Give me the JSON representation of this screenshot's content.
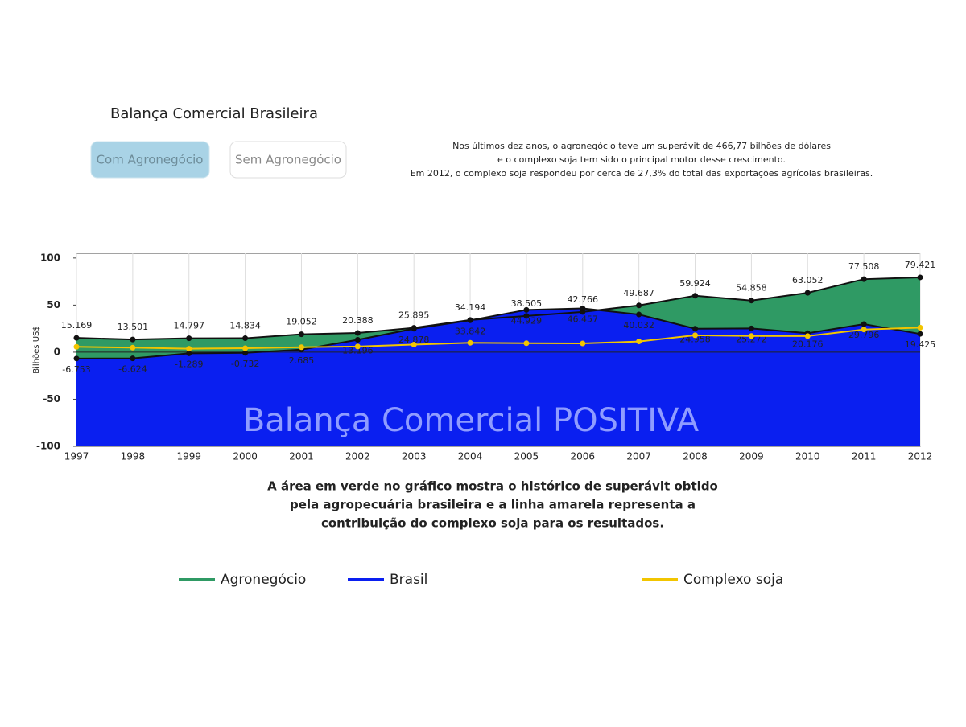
{
  "chart_data": {
    "type": "area",
    "title": "Balança Comercial Brasileira",
    "buttons": [
      "Com Agronegócio",
      "Sem Agronegócio"
    ],
    "description": [
      "Nos últimos dez anos, o agronegócio teve um superávit de 466,77 bilhões de dólares",
      "e o complexo soja tem sido o principal motor desse crescimento.",
      "Em 2012, o complexo soja respondeu por cerca de 27,3% do total das exportações agrícolas brasileiras."
    ],
    "watermark": "Balança Comercial POSITIVA",
    "ylabel": "Bilhões US$",
    "caption": [
      "A área em verde no gráfico mostra o histórico de superávit obtido",
      "pela agropecuária brasileira e a linha amarela representa a",
      "contribuição do complexo soja para os resultados."
    ],
    "categories": [
      "1997",
      "1998",
      "1999",
      "2000",
      "2001",
      "2002",
      "2003",
      "2004",
      "2005",
      "2006",
      "2007",
      "2008",
      "2009",
      "2010",
      "2011",
      "2012"
    ],
    "ylim": [
      -100,
      105
    ],
    "yticks": [
      -100,
      -50,
      0,
      50,
      100
    ],
    "series": [
      {
        "name": "Agronegócio",
        "color": "#2f9a64",
        "values": [
          15.169,
          13.501,
          14.797,
          14.834,
          19.052,
          20.388,
          25.895,
          34.194,
          38.505,
          42.766,
          49.687,
          59.924,
          54.858,
          63.052,
          77.508,
          79.421
        ]
      },
      {
        "name": "Brasil",
        "color": "#0a1ff0",
        "values": [
          -6.753,
          -6.624,
          -1.289,
          -0.732,
          2.685,
          13.196,
          24.878,
          33.842,
          44.929,
          46.457,
          40.032,
          24.958,
          25.272,
          20.176,
          29.796,
          19.425
        ]
      },
      {
        "name": "Complexo soja",
        "color": "#f2c500",
        "values": [
          5.7,
          4.8,
          3.7,
          4.2,
          5.3,
          6.0,
          8.1,
          10.0,
          9.5,
          9.3,
          11.4,
          18.0,
          17.2,
          17.1,
          24.1,
          26.1
        ]
      }
    ]
  }
}
